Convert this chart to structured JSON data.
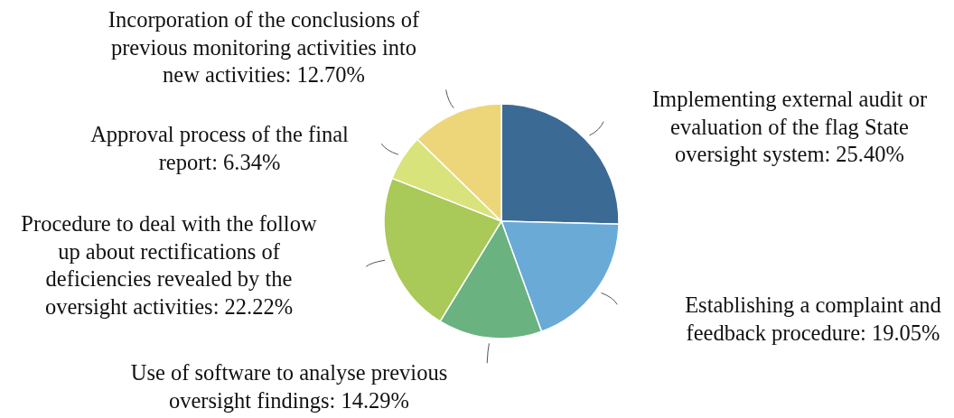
{
  "chart_data": {
    "type": "pie",
    "categories": [
      "Implementing external audit or evaluation of the flag State oversight system",
      "Establishing a complaint and feedback procedure",
      "Use of software to analyse previous oversight findings",
      "Procedure to deal with the follow up about rectifications of deficiencies revealed by the oversight activities",
      "Approval process of the final report",
      "Incorporation of the conclusions of previous monitoring activities into new activities"
    ],
    "values": [
      25.4,
      19.05,
      14.29,
      22.22,
      6.34,
      12.7
    ],
    "value_labels": [
      "25.40%",
      "19.05%",
      "14.29%",
      "22.22%",
      "6.34%",
      "12.70%"
    ],
    "colors": [
      "#3b6a94",
      "#6aaad6",
      "#6ab280",
      "#a9c958",
      "#d9e37b",
      "#edd67a"
    ]
  }
}
